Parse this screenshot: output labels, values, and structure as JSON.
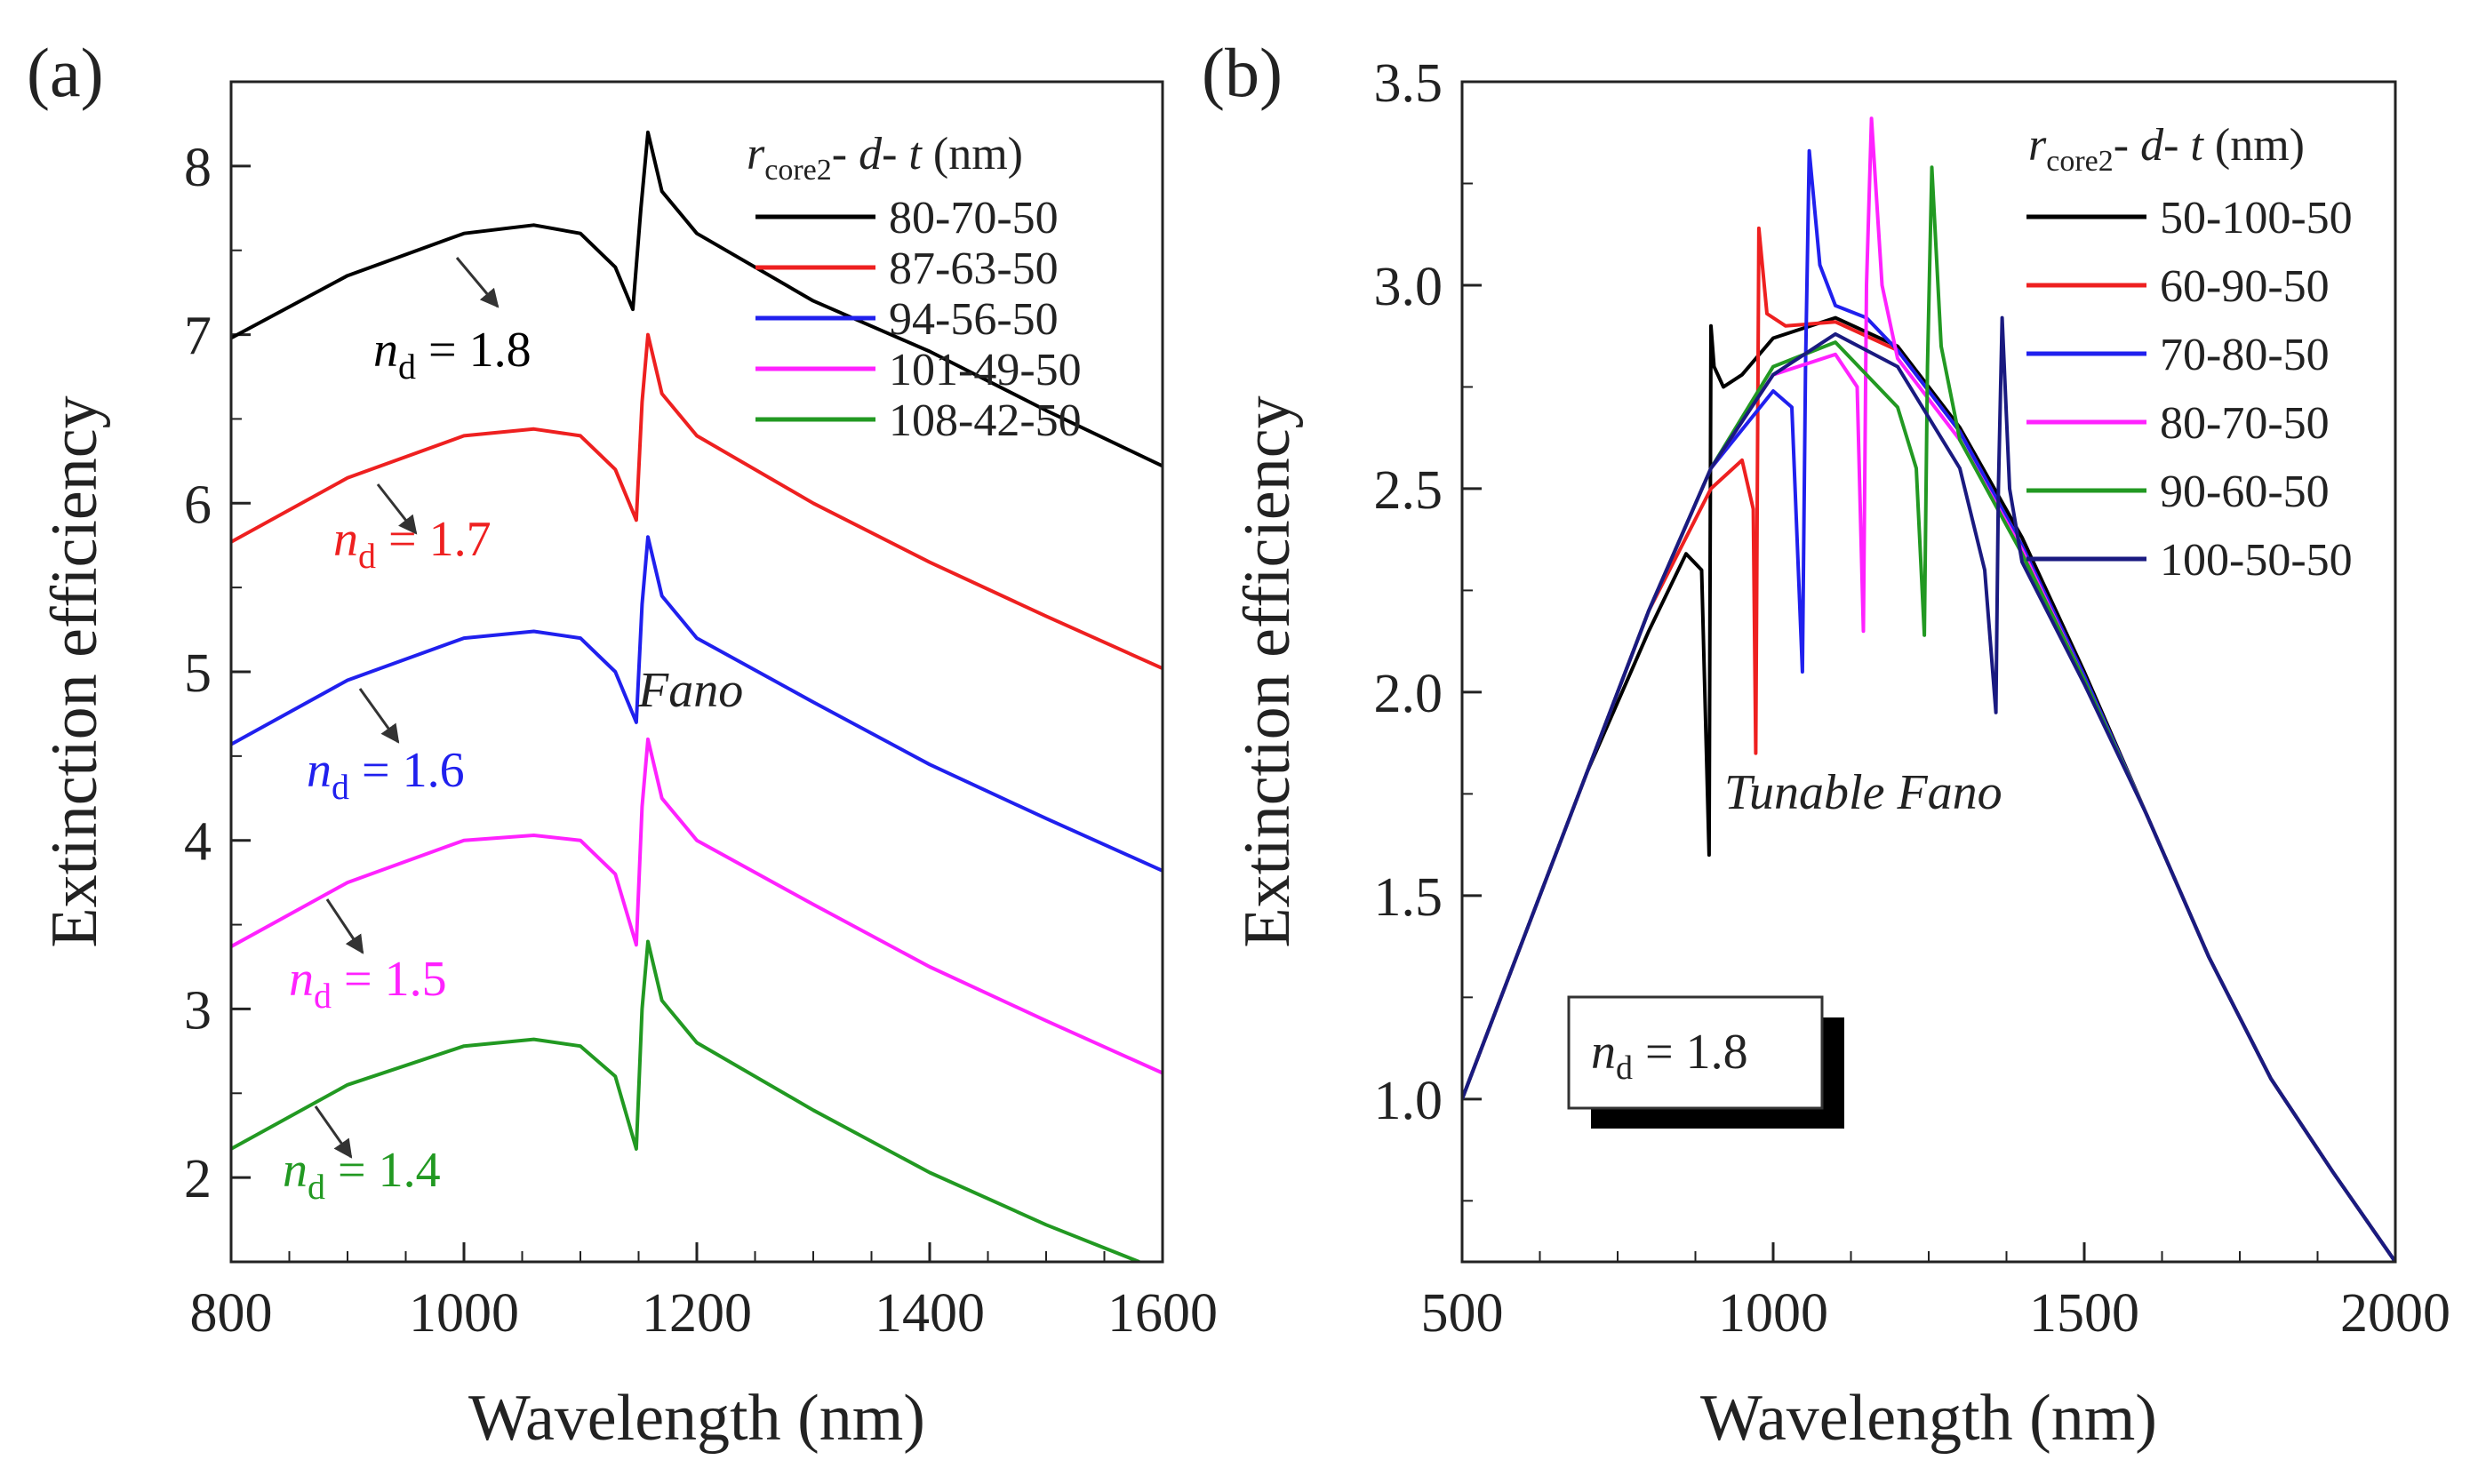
{
  "chart_data": [
    {
      "panel": "(a)",
      "type": "line",
      "xlabel": "Wavelength (nm)",
      "ylabel": "Extinction efficiency",
      "xlim": [
        800,
        1600
      ],
      "ylim": [
        1.5,
        8.5
      ],
      "xticks": [
        800,
        1000,
        1200,
        1400,
        1600
      ],
      "yticks": [
        2,
        3,
        4,
        5,
        6,
        7,
        8
      ],
      "legend_title": {
        "r": "r",
        "sub": "core2",
        "rest": "- ",
        "d": "d",
        "dash": "- ",
        "t": "t",
        "unit": " (nm)"
      },
      "annotation": "Fano",
      "series": [
        {
          "name": "80-70-50",
          "color": "#000000",
          "label_n": "n",
          "label_sub": "d",
          "label_value": " = 1.8",
          "x": [
            800,
            900,
            1000,
            1060,
            1100,
            1130,
            1145,
            1152,
            1158,
            1170,
            1200,
            1300,
            1400,
            1500,
            1600
          ],
          "y": [
            6.98,
            7.35,
            7.6,
            7.65,
            7.6,
            7.4,
            7.15,
            7.75,
            8.2,
            7.85,
            7.6,
            7.2,
            6.9,
            6.55,
            6.22
          ]
        },
        {
          "name": "87-63-50",
          "color": "#ee2020",
          "label_n": "n",
          "label_sub": "d",
          "label_value": " = 1.7",
          "x": [
            800,
            900,
            1000,
            1060,
            1100,
            1130,
            1148,
            1153,
            1158,
            1170,
            1200,
            1300,
            1400,
            1500,
            1600
          ],
          "y": [
            5.77,
            6.15,
            6.4,
            6.44,
            6.4,
            6.2,
            5.9,
            6.6,
            7.0,
            6.65,
            6.4,
            6.0,
            5.65,
            5.33,
            5.02
          ]
        },
        {
          "name": "94-56-50",
          "color": "#2020ee",
          "label_n": "n",
          "label_sub": "d",
          "label_value": " = 1.6",
          "x": [
            800,
            900,
            1000,
            1060,
            1100,
            1130,
            1148,
            1153,
            1158,
            1170,
            1200,
            1300,
            1400,
            1500,
            1600
          ],
          "y": [
            4.57,
            4.95,
            5.2,
            5.24,
            5.2,
            5.0,
            4.7,
            5.4,
            5.8,
            5.45,
            5.2,
            4.82,
            4.45,
            4.13,
            3.82
          ]
        },
        {
          "name": "101-49-50",
          "color": "#ff22ff",
          "label_n": "n",
          "label_sub": "d",
          "label_value": " = 1.5",
          "x": [
            800,
            900,
            1000,
            1060,
            1100,
            1130,
            1148,
            1153,
            1158,
            1170,
            1200,
            1300,
            1400,
            1500,
            1600
          ],
          "y": [
            3.37,
            3.75,
            4.0,
            4.03,
            4.0,
            3.8,
            3.38,
            4.2,
            4.6,
            4.25,
            4.0,
            3.62,
            3.25,
            2.93,
            2.62
          ]
        },
        {
          "name": "108-42-50",
          "color": "#229922",
          "label_n": "n",
          "label_sub": "d",
          "label_value": " = 1.4",
          "x": [
            800,
            900,
            1000,
            1060,
            1100,
            1130,
            1148,
            1153,
            1158,
            1170,
            1200,
            1300,
            1400,
            1500,
            1580
          ],
          "y": [
            2.17,
            2.55,
            2.78,
            2.82,
            2.78,
            2.6,
            2.17,
            3.0,
            3.4,
            3.05,
            2.8,
            2.4,
            2.03,
            1.72,
            1.5
          ]
        }
      ]
    },
    {
      "panel": "(b)",
      "type": "line",
      "xlabel": "Wavelength (nm)",
      "ylabel": "Extinction efficiency",
      "xlim": [
        500,
        2000
      ],
      "ylim": [
        0.6,
        3.5
      ],
      "xticks": [
        500,
        1000,
        1500,
        2000
      ],
      "yticks": [
        1.0,
        1.5,
        2.0,
        2.5,
        3.0,
        3.5
      ],
      "legend_title": {
        "r": "r",
        "sub": "core2",
        "rest": "- ",
        "d": "d",
        "dash": "- ",
        "t": "t",
        "unit": " (nm)"
      },
      "annotation": "Tunable Fano",
      "box_note": {
        "n": "n",
        "sub": "d",
        "value": " = 1.8"
      },
      "series": [
        {
          "name": "50-100-50",
          "color": "#000000",
          "x": [
            500,
            600,
            700,
            800,
            860,
            885,
            897,
            900,
            905,
            920,
            950,
            1000,
            1100,
            1200,
            1300,
            1400,
            1500,
            1600,
            1700,
            1800,
            1900,
            2000
          ],
          "y": [
            1.0,
            1.4,
            1.8,
            2.15,
            2.34,
            2.3,
            1.6,
            2.9,
            2.8,
            2.75,
            2.78,
            2.87,
            2.92,
            2.85,
            2.65,
            2.38,
            2.05,
            1.7,
            1.35,
            1.05,
            0.82,
            0.6
          ]
        },
        {
          "name": "60-90-50",
          "color": "#ee2020",
          "x": [
            500,
            600,
            700,
            800,
            900,
            950,
            968,
            972,
            977,
            990,
            1020,
            1100,
            1200,
            1300,
            1400,
            1500,
            1600,
            1700,
            1800,
            1900,
            2000
          ],
          "y": [
            1.0,
            1.4,
            1.8,
            2.2,
            2.5,
            2.57,
            2.45,
            1.85,
            3.14,
            2.93,
            2.9,
            2.91,
            2.84,
            2.64,
            2.36,
            2.04,
            1.7,
            1.35,
            1.05,
            0.82,
            0.6
          ]
        },
        {
          "name": "70-80-50",
          "color": "#2020ee",
          "x": [
            500,
            600,
            700,
            800,
            900,
            1000,
            1030,
            1047,
            1052,
            1058,
            1075,
            1100,
            1150,
            1200,
            1300,
            1400,
            1500,
            1600,
            1700,
            1800,
            1900,
            2000
          ],
          "y": [
            1.0,
            1.4,
            1.8,
            2.2,
            2.55,
            2.74,
            2.7,
            2.05,
            2.8,
            3.33,
            3.05,
            2.95,
            2.92,
            2.84,
            2.64,
            2.36,
            2.04,
            1.7,
            1.35,
            1.05,
            0.82,
            0.6
          ]
        },
        {
          "name": "80-70-50",
          "color": "#ff22ff",
          "x": [
            500,
            600,
            700,
            800,
            900,
            1000,
            1100,
            1135,
            1145,
            1150,
            1158,
            1175,
            1200,
            1300,
            1400,
            1500,
            1600,
            1700,
            1800,
            1900,
            2000
          ],
          "y": [
            1.0,
            1.4,
            1.8,
            2.2,
            2.55,
            2.78,
            2.83,
            2.75,
            2.15,
            3.0,
            3.41,
            3.0,
            2.82,
            2.62,
            2.35,
            2.03,
            1.7,
            1.35,
            1.05,
            0.82,
            0.6
          ]
        },
        {
          "name": "90-60-50",
          "color": "#229922",
          "x": [
            500,
            600,
            700,
            800,
            900,
            1000,
            1100,
            1200,
            1230,
            1243,
            1248,
            1255,
            1270,
            1300,
            1400,
            1500,
            1600,
            1700,
            1800,
            1900,
            2000
          ],
          "y": [
            1.0,
            1.4,
            1.8,
            2.2,
            2.55,
            2.8,
            2.86,
            2.7,
            2.55,
            2.14,
            2.8,
            3.29,
            2.85,
            2.62,
            2.34,
            2.03,
            1.7,
            1.35,
            1.05,
            0.82,
            0.6
          ]
        },
        {
          "name": "100-50-50",
          "color": "#1a1a80",
          "x": [
            500,
            600,
            700,
            800,
            900,
            1000,
            1100,
            1200,
            1300,
            1340,
            1358,
            1362,
            1368,
            1380,
            1400,
            1500,
            1600,
            1700,
            1800,
            1900,
            2000
          ],
          "y": [
            1.0,
            1.4,
            1.8,
            2.2,
            2.55,
            2.78,
            2.88,
            2.8,
            2.55,
            2.3,
            1.95,
            2.5,
            2.92,
            2.5,
            2.32,
            2.02,
            1.7,
            1.35,
            1.05,
            0.82,
            0.6
          ]
        }
      ]
    }
  ]
}
